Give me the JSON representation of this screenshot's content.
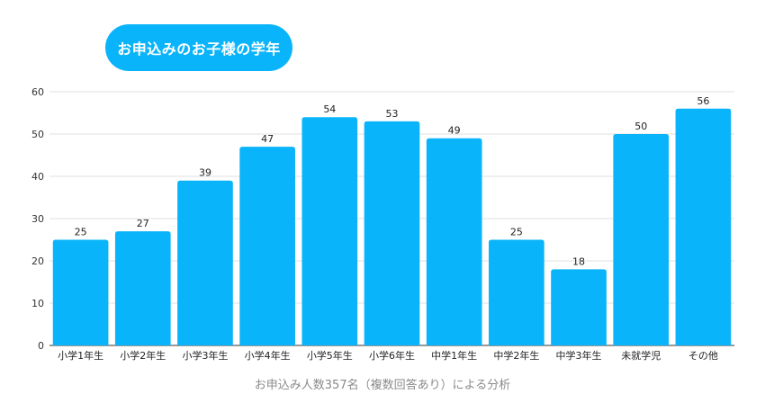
{
  "chart_data": {
    "type": "bar",
    "title": "お申込みのお子様の学年",
    "categories": [
      "小学1年生",
      "小学2年生",
      "小学3年生",
      "小学4年生",
      "小学5年生",
      "小学6年生",
      "中学1年生",
      "中学2年生",
      "中学3年生",
      "未就学児",
      "その他"
    ],
    "values": [
      25,
      27,
      39,
      47,
      54,
      53,
      49,
      25,
      18,
      50,
      56
    ],
    "ylim": [
      0,
      60
    ],
    "yticks": [
      0,
      10,
      20,
      30,
      40,
      50,
      60
    ],
    "grid": true,
    "data_labels": true,
    "bar_color": "#0AB4FA",
    "footnote": "お申込み人数357名（複数回答あり）による分析"
  }
}
